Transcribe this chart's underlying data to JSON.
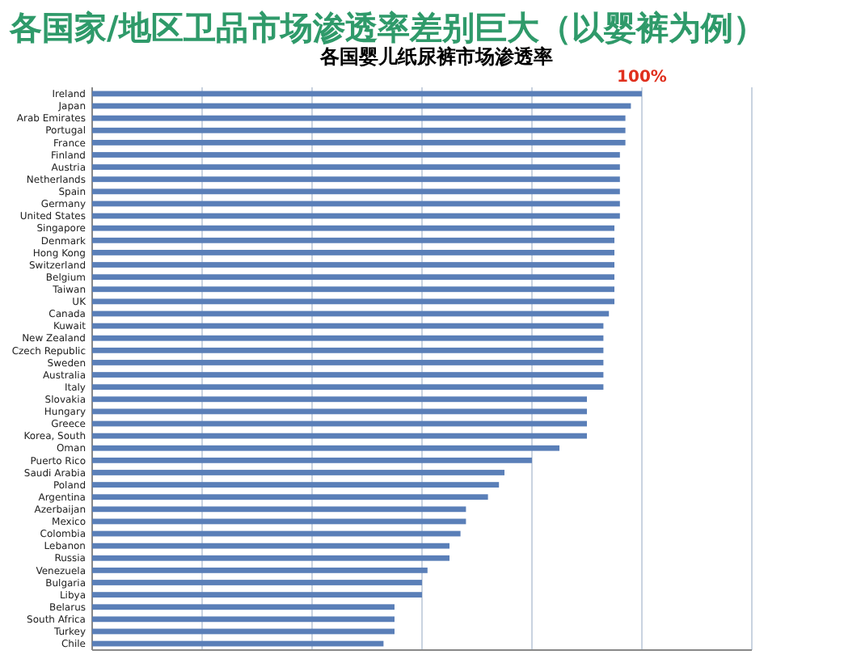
{
  "chart_data": {
    "type": "bar",
    "orientation": "horizontal",
    "title": "各国家/地区卫品市场渗透率差别巨大（以婴裤为例）",
    "subtitle": "各国婴儿纸尿裤市场渗透率",
    "categories": [
      "Ireland",
      "Japan",
      "Arab Emirates",
      "Portugal",
      "France",
      "Finland",
      "Austria",
      "Netherlands",
      "Spain",
      "Germany",
      "United States",
      "Singapore",
      "Denmark",
      "Hong Kong",
      "Switzerland",
      "Belgium",
      "Taiwan",
      "UK",
      "Canada",
      "Kuwait",
      "New Zealand",
      "Czech Republic",
      "Sweden",
      "Australia",
      "Italy",
      "Slovakia",
      "Hungary",
      "Greece",
      "Korea, South",
      "Oman",
      "Puerto Rico",
      "Saudi Arabia",
      "Poland",
      "Argentina",
      "Azerbaijan",
      "Mexico",
      "Colombia",
      "Lebanon",
      "Russia",
      "Venezuela",
      "Bulgaria",
      "Libya",
      "Belarus",
      "South Africa",
      "Turkey",
      "Chile"
    ],
    "values": [
      100,
      98,
      97,
      97,
      97,
      96,
      96,
      96,
      96,
      96,
      96,
      95,
      95,
      95,
      95,
      95,
      95,
      95,
      94,
      93,
      93,
      93,
      93,
      93,
      93,
      90,
      90,
      90,
      90,
      85,
      80,
      75,
      74,
      72,
      68,
      68,
      67,
      65,
      65,
      61,
      60,
      60,
      55,
      55,
      55,
      53
    ],
    "value_labels": [
      "100%",
      null,
      null,
      null,
      null,
      null,
      null,
      null,
      null,
      null,
      null,
      null,
      null,
      null,
      null,
      null,
      null,
      null,
      null,
      null,
      null,
      null,
      null,
      null,
      null,
      null,
      null,
      null,
      null,
      null,
      null,
      null,
      null,
      null,
      null,
      null,
      null,
      null,
      null,
      null,
      null,
      null,
      null,
      null,
      null,
      null
    ],
    "color": "#5a7fb8",
    "xlim": [
      0,
      120
    ],
    "xticks": [
      {
        "value": 0,
        "label": null
      },
      {
        "value": 20,
        "label": null
      },
      {
        "value": 40,
        "label": null
      },
      {
        "value": 60,
        "label": null
      },
      {
        "value": 80,
        "label": null
      },
      {
        "value": 100,
        "label": null
      },
      {
        "value": 120,
        "label": null
      }
    ],
    "tick_labels": "y",
    "grid": "x"
  }
}
